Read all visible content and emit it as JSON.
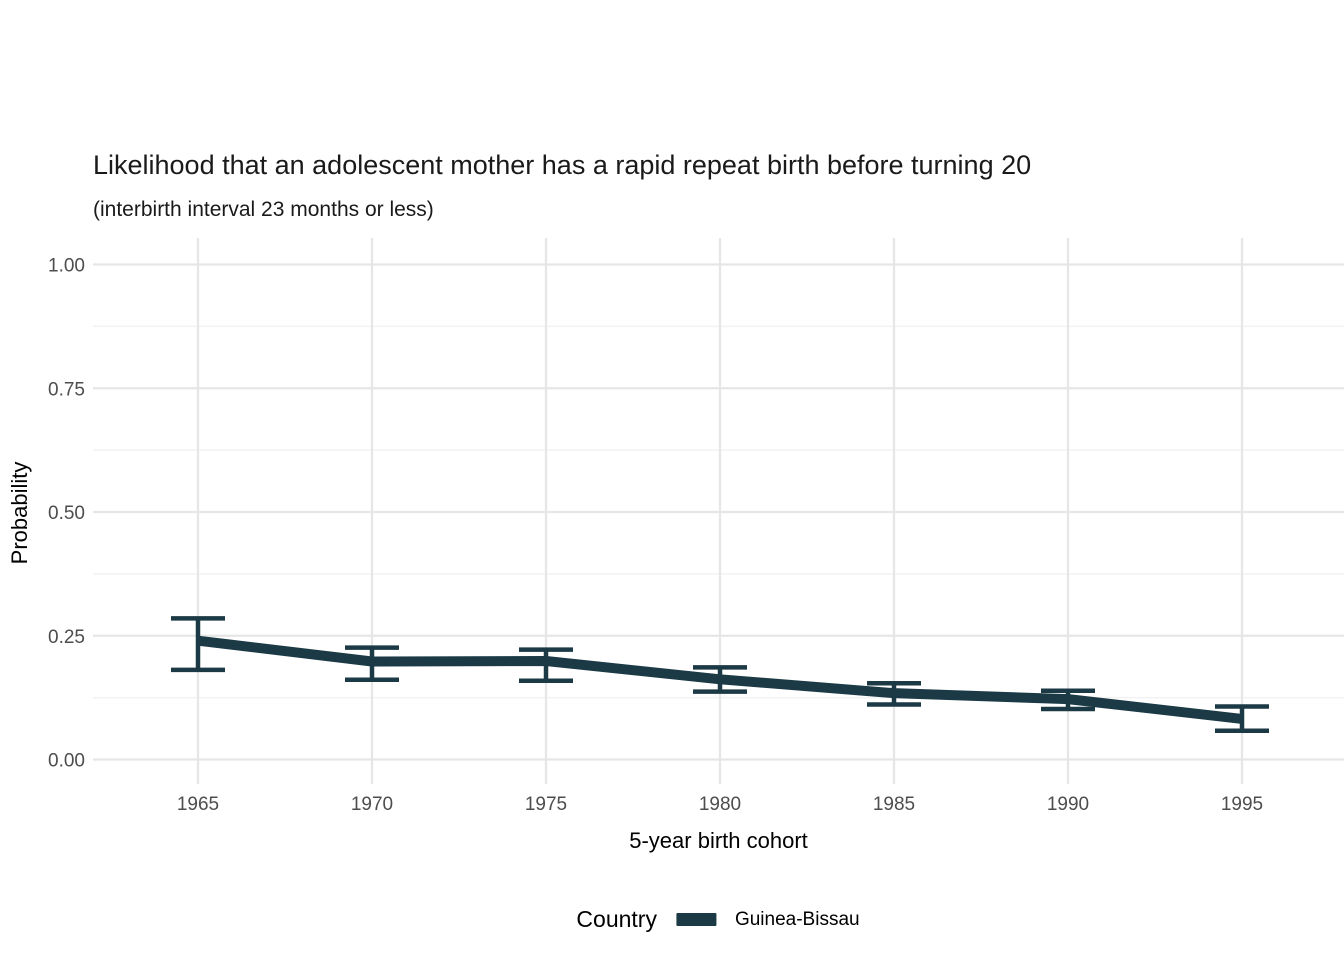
{
  "chart_data": {
    "type": "line",
    "title": "Likelihood that an adolescent mother has a rapid repeat birth before turning 20",
    "subtitle": "(interbirth interval 23 months or less)",
    "xlabel": "5-year birth cohort",
    "ylabel": "Probability",
    "legend_title": "Country",
    "legend_position": "bottom",
    "grid": true,
    "ylim": [
      0,
      1
    ],
    "x": [
      1965,
      1970,
      1975,
      1980,
      1985,
      1990,
      1995
    ],
    "xtick_labels": [
      "1965",
      "1970",
      "1975",
      "1980",
      "1985",
      "1990",
      "1995"
    ],
    "yticks": [
      {
        "value": 0.0,
        "label": "0.00"
      },
      {
        "value": 0.25,
        "label": "0.25"
      },
      {
        "value": 0.5,
        "label": "0.50"
      },
      {
        "value": 0.75,
        "label": "0.75"
      },
      {
        "value": 1.0,
        "label": "1.00"
      }
    ],
    "minor_yticks": [
      0.125,
      0.375,
      0.625,
      0.875
    ],
    "series": [
      {
        "name": "Guinea-Bissau",
        "color": "#1b3a45",
        "values": [
          0.24,
          0.198,
          0.199,
          0.162,
          0.134,
          0.122,
          0.082
        ],
        "ci_lower": [
          0.181,
          0.161,
          0.159,
          0.137,
          0.111,
          0.102,
          0.058
        ],
        "ci_upper": [
          0.285,
          0.226,
          0.222,
          0.186,
          0.154,
          0.139,
          0.107
        ]
      }
    ],
    "colors": {
      "grid_major": "#e6e6e6",
      "grid_minor": "#f2f2f2",
      "axis_text": "#4d4d4d",
      "title_text": "#1a1a1a"
    }
  }
}
